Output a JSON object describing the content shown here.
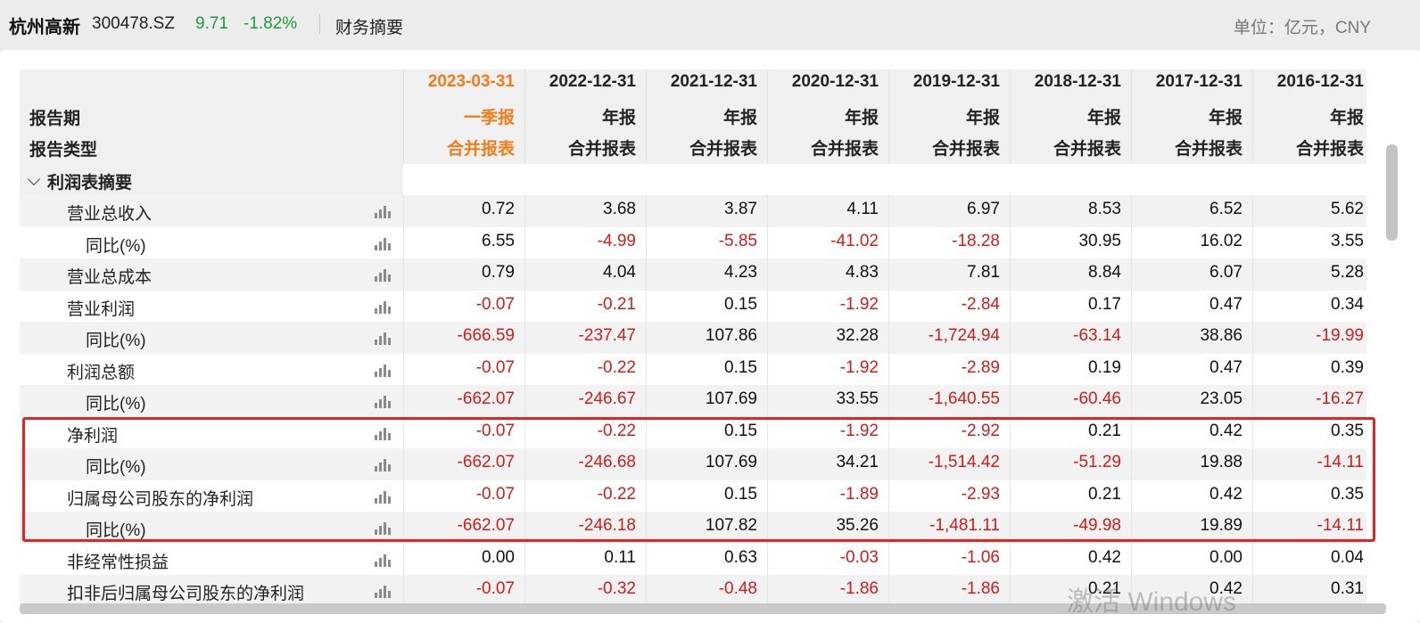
{
  "header": {
    "company_name": "杭州高新",
    "stock_code": "300478.SZ",
    "price": "9.71",
    "change_pct": "-1.82%",
    "tab": "财务摘要",
    "unit": "单位：亿元，CNY"
  },
  "colors": {
    "accent_orange": "#f07c1a",
    "negative_red": "#d21b1b",
    "positive_green": "#1c9a3c",
    "highlight_border": "#e42424"
  },
  "table": {
    "row_header_1": "报告期",
    "row_header_2": "报告类型",
    "columns": [
      {
        "date": "2023-03-31",
        "period": "一季报",
        "type": "合并报表"
      },
      {
        "date": "2022-12-31",
        "period": "年报",
        "type": "合并报表"
      },
      {
        "date": "2021-12-31",
        "period": "年报",
        "type": "合并报表"
      },
      {
        "date": "2020-12-31",
        "period": "年报",
        "type": "合并报表"
      },
      {
        "date": "2019-12-31",
        "period": "年报",
        "type": "合并报表"
      },
      {
        "date": "2018-12-31",
        "period": "年报",
        "type": "合并报表"
      },
      {
        "date": "2017-12-31",
        "period": "年报",
        "type": "合并报表"
      },
      {
        "date": "2016-12-31",
        "period": "年报",
        "type": "合并报表"
      }
    ],
    "section_title": "利润表摘要",
    "rows": [
      {
        "label": "营业总收入",
        "sub": false,
        "values": [
          "0.72",
          "3.68",
          "3.87",
          "4.11",
          "6.97",
          "8.53",
          "6.52",
          "5.62"
        ]
      },
      {
        "label": "同比(%)",
        "sub": true,
        "values": [
          "6.55",
          "-4.99",
          "-5.85",
          "-41.02",
          "-18.28",
          "30.95",
          "16.02",
          "3.55"
        ]
      },
      {
        "label": "营业总成本",
        "sub": false,
        "values": [
          "0.79",
          "4.04",
          "4.23",
          "4.83",
          "7.81",
          "8.84",
          "6.07",
          "5.28"
        ]
      },
      {
        "label": "营业利润",
        "sub": false,
        "values": [
          "-0.07",
          "-0.21",
          "0.15",
          "-1.92",
          "-2.84",
          "0.17",
          "0.47",
          "0.34"
        ]
      },
      {
        "label": "同比(%)",
        "sub": true,
        "values": [
          "-666.59",
          "-237.47",
          "107.86",
          "32.28",
          "-1,724.94",
          "-63.14",
          "38.86",
          "-19.99"
        ]
      },
      {
        "label": "利润总额",
        "sub": false,
        "values": [
          "-0.07",
          "-0.22",
          "0.15",
          "-1.92",
          "-2.89",
          "0.19",
          "0.47",
          "0.39"
        ]
      },
      {
        "label": "同比(%)",
        "sub": true,
        "values": [
          "-662.07",
          "-246.67",
          "107.69",
          "33.55",
          "-1,640.55",
          "-60.46",
          "23.05",
          "-16.27"
        ]
      },
      {
        "label": "净利润",
        "sub": false,
        "values": [
          "-0.07",
          "-0.22",
          "0.15",
          "-1.92",
          "-2.92",
          "0.21",
          "0.42",
          "0.35"
        ]
      },
      {
        "label": "同比(%)",
        "sub": true,
        "values": [
          "-662.07",
          "-246.68",
          "107.69",
          "34.21",
          "-1,514.42",
          "-51.29",
          "19.88",
          "-14.11"
        ]
      },
      {
        "label": "归属母公司股东的净利润",
        "sub": false,
        "values": [
          "-0.07",
          "-0.22",
          "0.15",
          "-1.89",
          "-2.93",
          "0.21",
          "0.42",
          "0.35"
        ]
      },
      {
        "label": "同比(%)",
        "sub": true,
        "values": [
          "-662.07",
          "-246.18",
          "107.82",
          "35.26",
          "-1,481.11",
          "-49.98",
          "19.89",
          "-14.11"
        ]
      },
      {
        "label": "非经常性损益",
        "sub": false,
        "values": [
          "0.00",
          "0.11",
          "0.63",
          "-0.03",
          "-1.06",
          "0.42",
          "0.00",
          "0.04"
        ]
      },
      {
        "label": "扣非后归属母公司股东的净利润",
        "sub": false,
        "values": [
          "-0.07",
          "-0.32",
          "-0.48",
          "-1.86",
          "-1.86",
          "0.21",
          "0.42",
          "0.31"
        ]
      }
    ]
  },
  "watermark": "激活 Windows"
}
